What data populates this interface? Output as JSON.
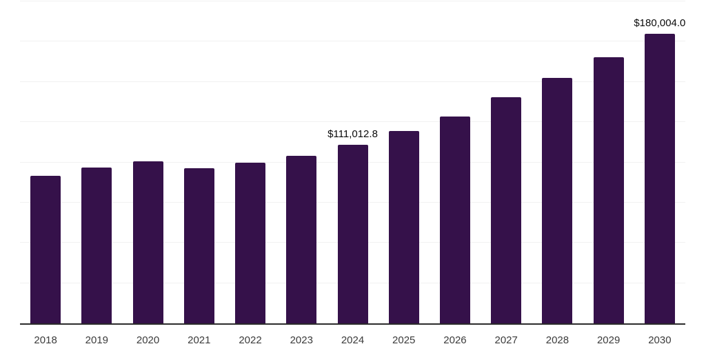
{
  "chart_data": {
    "type": "bar",
    "title": "",
    "categories": [
      "2018",
      "2019",
      "2020",
      "2021",
      "2022",
      "2023",
      "2024",
      "2025",
      "2026",
      "2027",
      "2028",
      "2029",
      "2030"
    ],
    "values": [
      91500,
      96800,
      100500,
      96200,
      99900,
      104000,
      111012.8,
      119700,
      128700,
      140300,
      152300,
      165300,
      180004.0
    ],
    "labels": [
      "",
      "",
      "",
      "",
      "",
      "",
      "$111,012.8",
      "",
      "",
      "",
      "",
      "",
      "$180,004.0"
    ],
    "xlabel": "",
    "ylabel": "",
    "ylim": [
      0,
      200000
    ],
    "gridline_step": 25000,
    "grid": true,
    "legend": false,
    "colors": {
      "bar": "#35114A",
      "axis_line": "#2B2B2B",
      "gridline": "#F1F1F1",
      "value_label": "#0A0A0A",
      "tick_label": "#3B3B3B",
      "background": "#FFFFFF"
    }
  }
}
